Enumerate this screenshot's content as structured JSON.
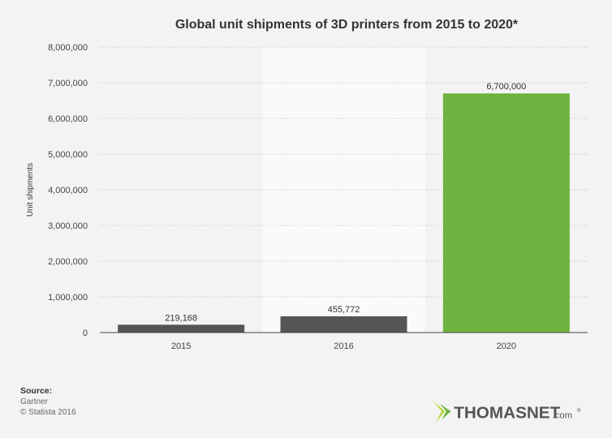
{
  "chart_data": {
    "type": "bar",
    "title": "Global unit shipments of 3D printers from 2015 to 2020*",
    "xlabel": "",
    "ylabel": "Unit shipments",
    "categories": [
      "2015",
      "2016",
      "2020"
    ],
    "values": [
      219168,
      455772,
      6700000
    ],
    "value_labels": [
      "219,168",
      "455,772",
      "6,700,000"
    ],
    "ylim": [
      0,
      8000000
    ],
    "yticks": [
      0,
      1000000,
      2000000,
      3000000,
      4000000,
      5000000,
      6000000,
      7000000,
      8000000
    ],
    "ytick_labels": [
      "0",
      "1,000,000",
      "2,000,000",
      "3,000,000",
      "4,000,000",
      "5,000,000",
      "6,000,000",
      "7,000,000",
      "8,000,000"
    ],
    "highlighted_category": "2016",
    "grid": "horizontal dotted",
    "colors": {
      "bar": "#555555",
      "bar_highlight": "#6cb33f",
      "highlight_band": "#fafafa",
      "background": "#f3f3f3"
    },
    "highlight_bar_index": 2
  },
  "source": {
    "heading": "Source:",
    "lines": [
      "Gartner",
      "© Statista 2016"
    ]
  },
  "logo": {
    "text": "THOMASNET",
    "suffix": ".com",
    "mark": "®",
    "colors": {
      "arrow_light": "#b5d334",
      "arrow_dark": "#6cb33f",
      "text": "#555555"
    }
  }
}
